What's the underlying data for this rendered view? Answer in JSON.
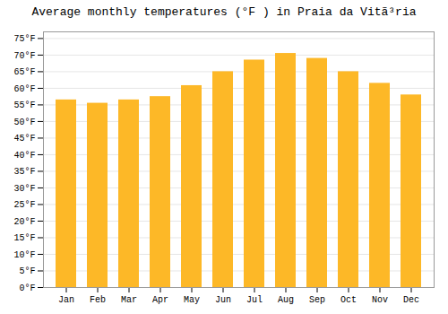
{
  "chart_data": {
    "type": "bar",
    "title": "Average monthly temperatures (°F ) in Praia da Vitã³ria",
    "categories": [
      "Jan",
      "Feb",
      "Mar",
      "Apr",
      "May",
      "Jun",
      "Jul",
      "Aug",
      "Sep",
      "Oct",
      "Nov",
      "Dec"
    ],
    "values": [
      56.5,
      55.5,
      56.5,
      57.5,
      60.8,
      65.0,
      68.5,
      70.5,
      69.0,
      65.0,
      61.5,
      58.0
    ],
    "color": "#FDB827",
    "ylim": [
      0,
      77
    ],
    "yticks": [
      {
        "value": 0,
        "label": "0°F"
      },
      {
        "value": 5,
        "label": "5°F"
      },
      {
        "value": 10,
        "label": "10°F"
      },
      {
        "value": 15,
        "label": "15°F"
      },
      {
        "value": 20,
        "label": "20°F"
      },
      {
        "value": 25,
        "label": "25°F"
      },
      {
        "value": 30,
        "label": "30°F"
      },
      {
        "value": 35,
        "label": "35°F"
      },
      {
        "value": 40,
        "label": "40°F"
      },
      {
        "value": 45,
        "label": "45°F"
      },
      {
        "value": 50,
        "label": "50°F"
      },
      {
        "value": 55,
        "label": "55°F"
      },
      {
        "value": 60,
        "label": "60°F"
      },
      {
        "value": 65,
        "label": "65°F"
      },
      {
        "value": 70,
        "label": "70°F"
      },
      {
        "value": 75,
        "label": "75°F"
      }
    ],
    "grid": true
  }
}
